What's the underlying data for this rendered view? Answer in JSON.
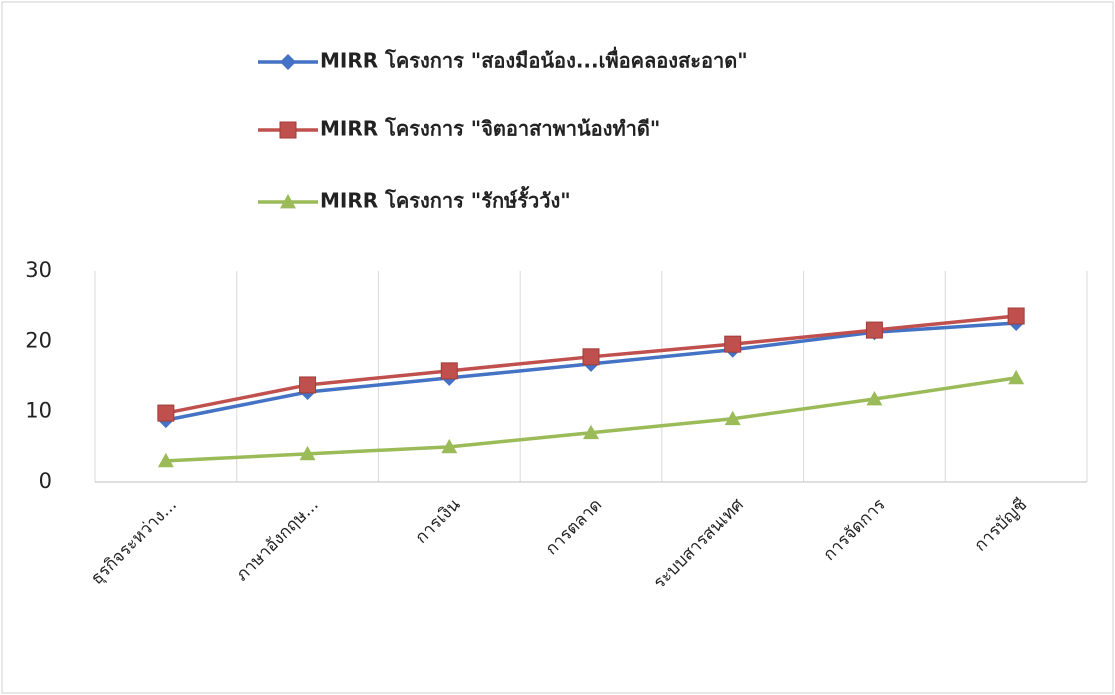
{
  "chart_data": {
    "type": "line",
    "categories": [
      "ธุรกิจระหว่าง...",
      "ภาษาอังกฤษ...",
      "การเงิน",
      "การตลาด",
      "ระบบสารสนเทศ",
      "การจัดการ",
      "การบัญชี"
    ],
    "series": [
      {
        "name": "MIRR โครงการ \"สองมือน้อง...เพื่อคลองสะอาด\"",
        "color": "#4472c4",
        "marker": "diamond",
        "values": [
          8.8,
          12.8,
          14.8,
          16.8,
          18.8,
          21.3,
          22.6
        ]
      },
      {
        "name": "MIRR โครงการ \"จิตอาสาพาน้องทำดี\"",
        "color": "#c0504d",
        "marker": "square",
        "values": [
          9.8,
          13.8,
          15.8,
          17.8,
          19.6,
          21.6,
          23.6
        ]
      },
      {
        "name": "MIRR โครงการ \"รักษ์รั้ววัง\"",
        "color": "#9bbb59",
        "marker": "triangle",
        "values": [
          3.0,
          4.0,
          5.0,
          7.0,
          9.0,
          11.8,
          14.8
        ]
      }
    ],
    "ylim": [
      0,
      30
    ],
    "yticks": [
      0,
      10,
      20,
      30
    ],
    "grid": "vertical",
    "legend": "top"
  }
}
